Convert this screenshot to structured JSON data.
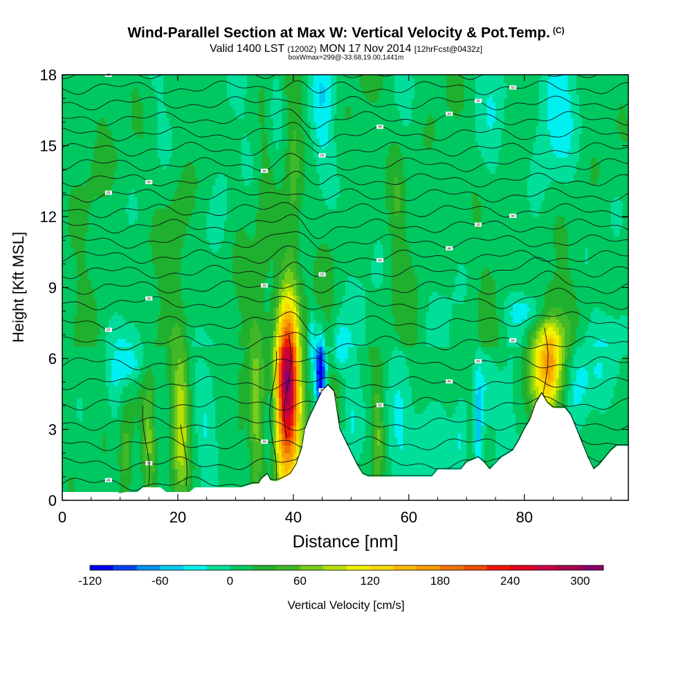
{
  "title": {
    "main": "Wind-Parallel Section at Max W: Vertical Velocity & Pot.Temp.",
    "copyright": "(C)",
    "valid_prefix": "Valid 1400 LST",
    "valid_utc": "(1200Z)",
    "valid_date": "MON 17 Nov 2014",
    "forecast": "[12hrFcst@0432z]",
    "box_wmax": "boxWmax=299@-33.68,19.00,1441m"
  },
  "chart_data": {
    "type": "heatmap",
    "xlabel": "Distance [nm]",
    "ylabel": "Height [Kft MSL]",
    "xlim": [
      0,
      98
    ],
    "ylim": [
      0,
      18
    ],
    "xticks": [
      0,
      20,
      40,
      60,
      80
    ],
    "yticks": [
      0,
      3,
      6,
      9,
      12,
      15,
      18
    ],
    "background_w": 10,
    "terrain": [
      [
        0,
        0.35
      ],
      [
        5,
        0.35
      ],
      [
        9.5,
        0.35
      ],
      [
        10,
        0.3
      ],
      [
        11,
        0.35
      ],
      [
        13,
        0.35
      ],
      [
        14,
        0.55
      ],
      [
        17,
        0.55
      ],
      [
        18,
        0.35
      ],
      [
        20,
        0.35
      ],
      [
        22,
        0.35
      ],
      [
        23,
        0.55
      ],
      [
        28,
        0.55
      ],
      [
        31,
        0.55
      ],
      [
        33,
        0.7
      ],
      [
        34,
        0.7
      ],
      [
        34.5,
        0.9
      ],
      [
        35.5,
        1.1
      ],
      [
        36,
        0.85
      ],
      [
        37,
        0.8
      ],
      [
        38,
        0.9
      ],
      [
        39.5,
        1.1
      ],
      [
        40.5,
        1.5
      ],
      [
        41.5,
        2.2
      ],
      [
        42,
        3
      ],
      [
        43,
        3.6
      ],
      [
        44,
        4.1
      ],
      [
        45,
        4.6
      ],
      [
        46,
        4.85
      ],
      [
        47,
        4.6
      ],
      [
        47.5,
        3.8
      ],
      [
        48,
        3.0
      ],
      [
        49,
        2.5
      ],
      [
        50,
        2.0
      ],
      [
        51,
        1.5
      ],
      [
        52,
        1.1
      ],
      [
        53,
        1.0
      ],
      [
        56,
        1.0
      ],
      [
        60,
        1.0
      ],
      [
        64,
        1.0
      ],
      [
        65,
        1.3
      ],
      [
        69,
        1.3
      ],
      [
        70,
        1.6
      ],
      [
        72,
        1.8
      ],
      [
        73,
        1.6
      ],
      [
        74,
        1.3
      ],
      [
        75,
        1.55
      ],
      [
        76,
        1.8
      ],
      [
        78,
        2.1
      ],
      [
        79,
        2.5
      ],
      [
        80,
        3.0
      ],
      [
        81,
        3.4
      ],
      [
        82,
        4.1
      ],
      [
        83,
        4.5
      ],
      [
        84,
        4.1
      ],
      [
        85,
        3.9
      ],
      [
        86,
        3.9
      ],
      [
        87,
        3.9
      ],
      [
        88,
        3.6
      ],
      [
        89,
        3.0
      ],
      [
        90,
        2.4
      ],
      [
        91,
        1.8
      ],
      [
        92,
        1.3
      ],
      [
        93,
        1.5
      ],
      [
        94,
        1.8
      ],
      [
        95,
        2.1
      ],
      [
        96,
        2.3
      ],
      [
        98,
        2.3
      ]
    ],
    "w_features": [
      {
        "x": 39,
        "y": 4.6,
        "sx": 1.5,
        "sy": 2.8,
        "amp": 270
      },
      {
        "x": 38.8,
        "y": 5.5,
        "sx": 0.9,
        "sy": 1.2,
        "amp": 40
      },
      {
        "x": 33.5,
        "y": 3.6,
        "sx": 0.9,
        "sy": 2.6,
        "amp": 60
      },
      {
        "x": 20.5,
        "y": 3.3,
        "sx": 1.1,
        "sy": 2.3,
        "amp": 85
      },
      {
        "x": 15,
        "y": 2.6,
        "sx": 0.8,
        "sy": 1.8,
        "amp": 55
      },
      {
        "x": 11,
        "y": 1.8,
        "sx": 0.8,
        "sy": 1.4,
        "amp": 45
      },
      {
        "x": 47,
        "y": 3.2,
        "sx": 0.6,
        "sy": 1.5,
        "amp": 40
      },
      {
        "x": 54.5,
        "y": 2.8,
        "sx": 0.8,
        "sy": 1.7,
        "amp": 55
      },
      {
        "x": 84,
        "y": 5.8,
        "sx": 2.3,
        "sy": 1.7,
        "amp": 120
      },
      {
        "x": 84.5,
        "y": 6.0,
        "sx": 1.0,
        "sy": 1.2,
        "amp": 40
      },
      {
        "x": 44.7,
        "y": 5.4,
        "sx": 0.6,
        "sy": 1.1,
        "amp": -135
      },
      {
        "x": 43.2,
        "y": 6.9,
        "sx": 0.4,
        "sy": 0.8,
        "amp": -45
      },
      {
        "x": 48,
        "y": 6.5,
        "sx": 1.0,
        "sy": 0.8,
        "amp": -45
      },
      {
        "x": 11.5,
        "y": 5.8,
        "sx": 1.6,
        "sy": 0.6,
        "amp": -50
      },
      {
        "x": 9,
        "y": 4.5,
        "sx": 0.8,
        "sy": 1.2,
        "amp": -20
      },
      {
        "x": 25,
        "y": 3.0,
        "sx": 1.5,
        "sy": 1.6,
        "amp": -30
      },
      {
        "x": 36,
        "y": 3.0,
        "sx": 0.6,
        "sy": 1.5,
        "amp": -35
      },
      {
        "x": 50,
        "y": 3.5,
        "sx": 1.0,
        "sy": 2.5,
        "amp": -30
      },
      {
        "x": 58,
        "y": 2.8,
        "sx": 1.5,
        "sy": 1.8,
        "amp": -35
      },
      {
        "x": 63,
        "y": 2.5,
        "sx": 1.8,
        "sy": 1.6,
        "amp": -30
      },
      {
        "x": 72,
        "y": 3.0,
        "sx": 0.5,
        "sy": 1.5,
        "amp": -60
      },
      {
        "x": 69,
        "y": 2.5,
        "sx": 0.8,
        "sy": 1.5,
        "amp": -30
      },
      {
        "x": 77,
        "y": 2.5,
        "sx": 1.5,
        "sy": 1.8,
        "amp": -30
      },
      {
        "x": 81,
        "y": 8.0,
        "sx": 3.0,
        "sy": 0.5,
        "amp": -40
      },
      {
        "x": 89,
        "y": 5.0,
        "sx": 1.5,
        "sy": 1.5,
        "amp": -40
      },
      {
        "x": 94,
        "y": 5.5,
        "sx": 3.0,
        "sy": 1.3,
        "amp": -20
      },
      {
        "x": 45,
        "y": 16.5,
        "sx": 1.5,
        "sy": 2.0,
        "amp": -35
      },
      {
        "x": 37,
        "y": 16.8,
        "sx": 1.0,
        "sy": 1.5,
        "amp": -25
      },
      {
        "x": 85,
        "y": 16.5,
        "sx": 2.5,
        "sy": 2.0,
        "amp": -40
      },
      {
        "x": 75,
        "y": 16.5,
        "sx": 1.5,
        "sy": 2.0,
        "amp": -20
      },
      {
        "x": 28,
        "y": 14.5,
        "sx": 1.5,
        "sy": 2.0,
        "amp": -15
      },
      {
        "x": 40,
        "y": 14.0,
        "sx": 1.0,
        "sy": 3.0,
        "amp": 35
      },
      {
        "x": 35,
        "y": 11.5,
        "sx": 1.0,
        "sy": 3.0,
        "amp": 25
      },
      {
        "x": 58,
        "y": 12.5,
        "sx": 1.0,
        "sy": 2.5,
        "amp": 25
      },
      {
        "x": 20,
        "y": 11.0,
        "sx": 1.5,
        "sy": 2.0,
        "amp": 20
      },
      {
        "x": 5,
        "y": 15.0,
        "sx": 2.0,
        "sy": 3.0,
        "amp": 15
      },
      {
        "x": 31,
        "y": 4.0,
        "sx": 0.6,
        "sy": 1.5,
        "amp": 20
      },
      {
        "x": 73.5,
        "y": 5.0,
        "sx": 1.5,
        "sy": 1.0,
        "amp": -20
      }
    ],
    "theta_label_text": "##",
    "colorbar": {
      "label": "Vertical Velocity [cm/s]",
      "ticks": [
        "-120",
        "-60",
        "0",
        "60",
        "120",
        "180",
        "240",
        "300"
      ],
      "tick_values": [
        -120,
        -60,
        0,
        60,
        120,
        180,
        240,
        300
      ],
      "bins": [
        -120,
        -100,
        -80,
        -60,
        -40,
        -20,
        0,
        20,
        40,
        60,
        80,
        100,
        120,
        140,
        160,
        180,
        200,
        220,
        240,
        260,
        280,
        300,
        320
      ],
      "colors": [
        "#0000ee",
        "#0044ee",
        "#0090f0",
        "#00c8f0",
        "#00f0f0",
        "#00de9a",
        "#00c860",
        "#20b030",
        "#40b828",
        "#78cc1c",
        "#b8e000",
        "#f0f000",
        "#f8d800",
        "#f8b800",
        "#f89a00",
        "#f07400",
        "#f04c00",
        "#f01800",
        "#e00020",
        "#c80040",
        "#a80050",
        "#8a006a"
      ]
    }
  }
}
